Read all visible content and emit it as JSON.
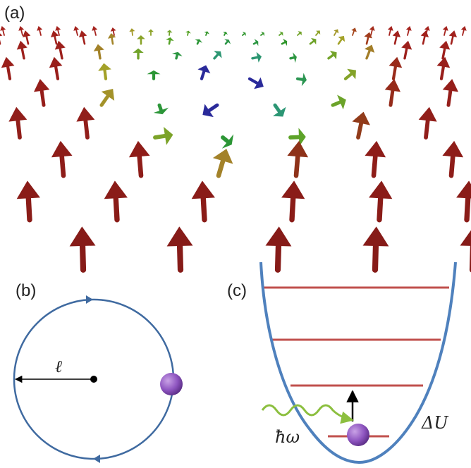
{
  "panels": {
    "a": {
      "label": "(a)"
    },
    "b": {
      "label": "(b)",
      "radius_symbol": "ℓ"
    },
    "c": {
      "label": "(c)",
      "photon_symbol": "ħω",
      "barrier_symbol": "ΔU"
    }
  }
}
